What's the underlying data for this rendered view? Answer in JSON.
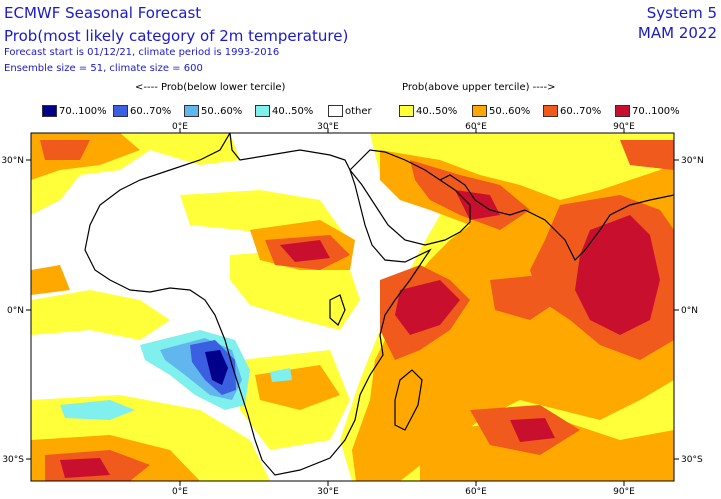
{
  "header": {
    "title": "ECMWF Seasonal Forecast",
    "subtitle": "Prob(most likely category of 2m temperature)",
    "forecast_info": "Forecast start is 01/12/21, climate period is 1993-2016",
    "ensemble_info": "Ensemble size = 51, climate size = 600",
    "system": "System 5",
    "season": "MAM 2022"
  },
  "legend": {
    "below_header": "<---- Prob(below lower tercile)",
    "above_header": "Prob(above upper tercile) ---->",
    "items": [
      {
        "label": "70..100%",
        "color": "#00008b"
      },
      {
        "label": "60..70%",
        "color": "#3a5fe0"
      },
      {
        "label": "50..60%",
        "color": "#62b6ee"
      },
      {
        "label": "40..50%",
        "color": "#7ff0ee"
      },
      {
        "label": "other",
        "color": "#ffffff"
      },
      {
        "label": "40..50%",
        "color": "#ffff3a"
      },
      {
        "label": "50..60%",
        "color": "#ffa800"
      },
      {
        "label": "60..70%",
        "color": "#f05a1c"
      },
      {
        "label": "70..100%",
        "color": "#c8102e"
      }
    ]
  },
  "axes": {
    "x_ticks": [
      "0°E",
      "30°E",
      "60°E",
      "90°E"
    ],
    "y_ticks": [
      "30°N",
      "0°N",
      "30°S"
    ]
  },
  "colors": {
    "text": "#1a1acc",
    "coast": "#000000"
  }
}
